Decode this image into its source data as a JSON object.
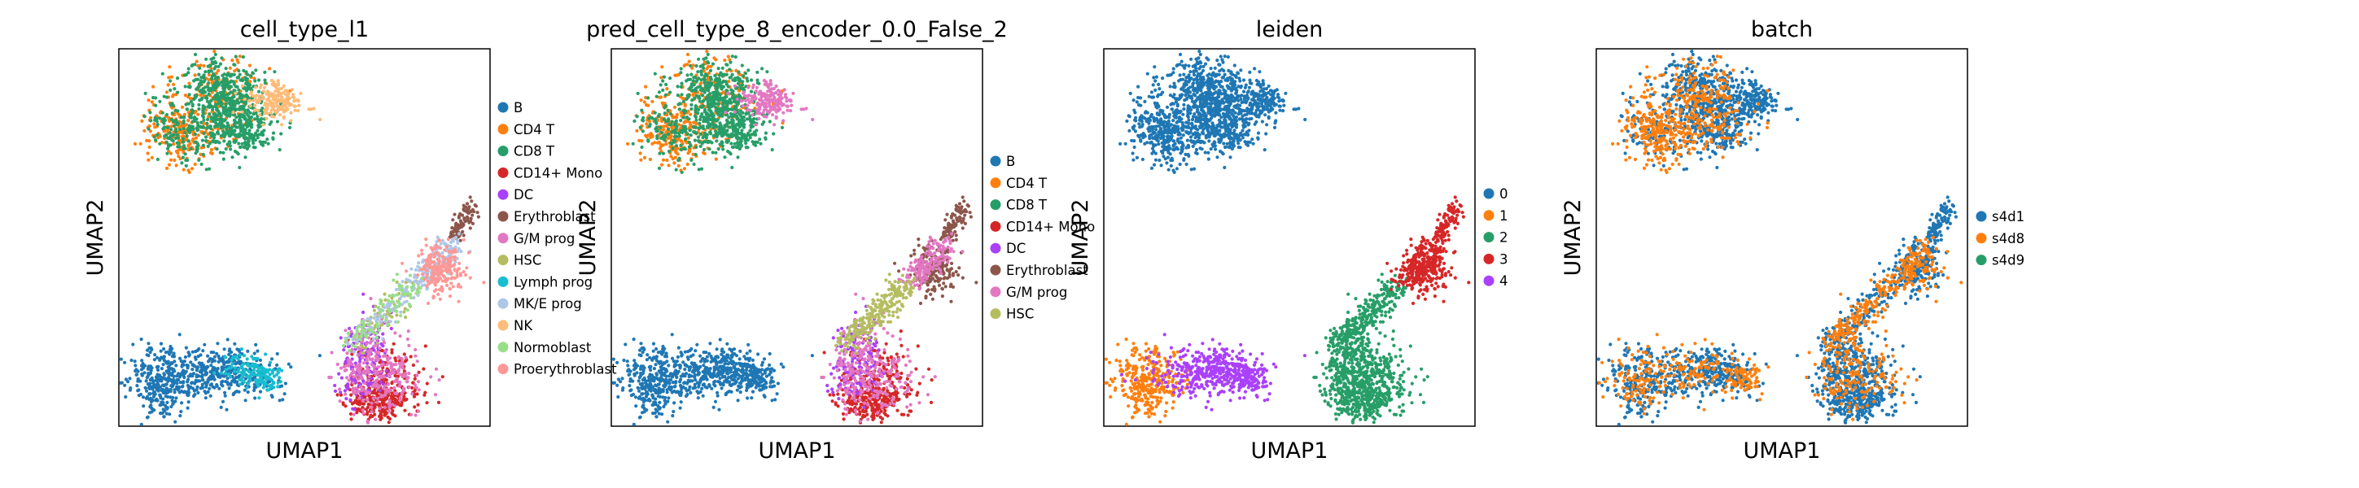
{
  "chart_data": [
    {
      "type": "scatter",
      "title": "cell_type_l1",
      "xlabel": "UMAP1",
      "ylabel": "UMAP2",
      "ticks": false,
      "legend_position": "right",
      "series": [
        {
          "name": "B",
          "color": "#1f77b4"
        },
        {
          "name": "CD4 T",
          "color": "#ff7f0e"
        },
        {
          "name": "CD8 T",
          "color": "#279e68"
        },
        {
          "name": "CD14+ Mono",
          "color": "#d62728"
        },
        {
          "name": "DC",
          "color": "#aa40fc"
        },
        {
          "name": "Erythroblast",
          "color": "#8c564b"
        },
        {
          "name": "G/M prog",
          "color": "#e377c2"
        },
        {
          "name": "HSC",
          "color": "#b5bd61"
        },
        {
          "name": "Lymph prog",
          "color": "#17becf"
        },
        {
          "name": "MK/E prog",
          "color": "#aec7e8"
        },
        {
          "name": "NK",
          "color": "#ffbb78"
        },
        {
          "name": "Normoblast",
          "color": "#98df8a"
        },
        {
          "name": "Proerythroblast",
          "color": "#ff9896"
        }
      ]
    },
    {
      "type": "scatter",
      "title": "pred_cell_type_8_encoder_0.0_False_2",
      "xlabel": "UMAP1",
      "ylabel": "UMAP2",
      "ticks": false,
      "legend_position": "right",
      "series": [
        {
          "name": "B",
          "color": "#1f77b4"
        },
        {
          "name": "CD4 T",
          "color": "#ff7f0e"
        },
        {
          "name": "CD8 T",
          "color": "#279e68"
        },
        {
          "name": "CD14+ Mono",
          "color": "#d62728"
        },
        {
          "name": "DC",
          "color": "#aa40fc"
        },
        {
          "name": "Erythroblast",
          "color": "#8c564b"
        },
        {
          "name": "G/M prog",
          "color": "#e377c2"
        },
        {
          "name": "HSC",
          "color": "#b5bd61"
        }
      ]
    },
    {
      "type": "scatter",
      "title": "leiden",
      "xlabel": "UMAP1",
      "ylabel": "UMAP2",
      "ticks": false,
      "legend_position": "right",
      "series": [
        {
          "name": "0",
          "color": "#1f77b4"
        },
        {
          "name": "1",
          "color": "#ff7f0e"
        },
        {
          "name": "2",
          "color": "#279e68"
        },
        {
          "name": "3",
          "color": "#d62728"
        },
        {
          "name": "4",
          "color": "#aa40fc"
        }
      ]
    },
    {
      "type": "scatter",
      "title": "batch",
      "xlabel": "UMAP1",
      "ylabel": "UMAP2",
      "ticks": false,
      "legend_position": "right",
      "series": [
        {
          "name": "s4d1",
          "color": "#1f77b4"
        },
        {
          "name": "s4d8",
          "color": "#ff7f0e"
        },
        {
          "name": "s4d9",
          "color": "#279e68"
        }
      ]
    }
  ]
}
